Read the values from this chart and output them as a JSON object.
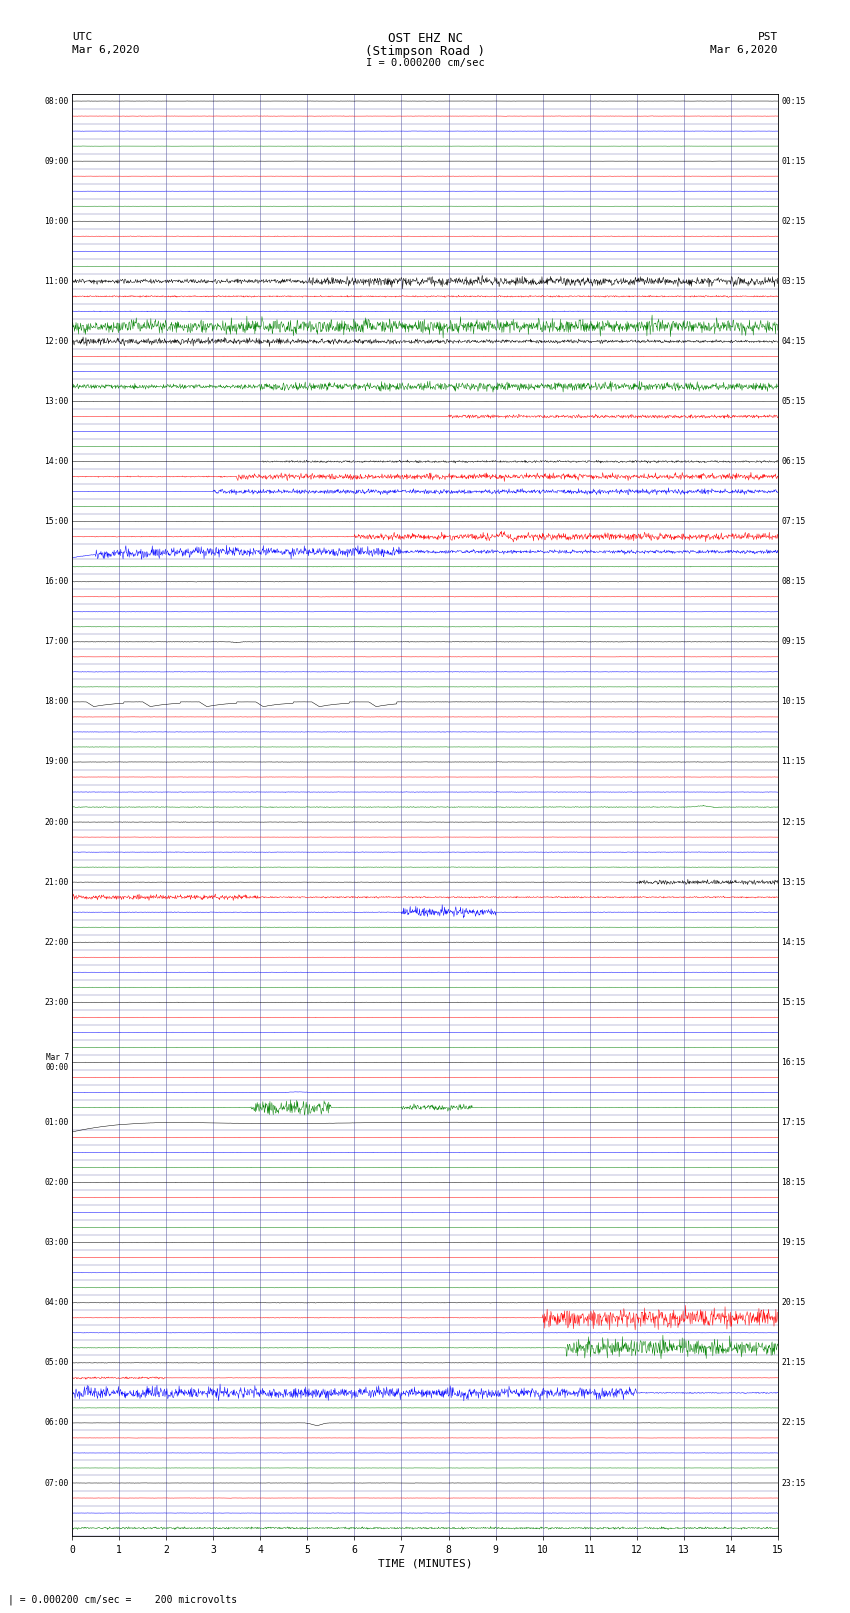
{
  "title_line1": "OST EHZ NC",
  "title_line2": "(Stimpson Road )",
  "title_line3": "I = 0.000200 cm/sec",
  "label_utc": "UTC",
  "label_date_left": "Mar 6,2020",
  "label_pst": "PST",
  "label_date_right": "Mar 6,2020",
  "xlabel": "TIME (MINUTES)",
  "scale_label": "| = 0.000200 cm/sec =    200 microvolts",
  "x_min": 0,
  "x_max": 15,
  "x_ticks": [
    0,
    1,
    2,
    3,
    4,
    5,
    6,
    7,
    8,
    9,
    10,
    11,
    12,
    13,
    14,
    15
  ],
  "background_color": "#ffffff",
  "grid_color": "#6666aa",
  "fig_width": 8.5,
  "fig_height": 16.13,
  "dpi": 100,
  "row_colors": [
    "black",
    "red",
    "blue",
    "green"
  ],
  "n_traces": 32,
  "left_labels": [
    "08:00",
    "",
    "",
    "",
    "09:00",
    "",
    "",
    "",
    "10:00",
    "",
    "",
    "",
    "11:00",
    "",
    "",
    "",
    "12:00",
    "",
    "",
    "",
    "13:00",
    "",
    "",
    "",
    "14:00",
    "",
    "",
    "",
    "15:00",
    "",
    "",
    "",
    "16:00",
    "",
    "",
    "",
    "17:00",
    "",
    "",
    "",
    "18:00",
    "",
    "",
    "",
    "19:00",
    "",
    "",
    "",
    "20:00",
    "",
    "",
    "",
    "21:00",
    "",
    "",
    "",
    "22:00",
    "",
    "",
    "",
    "23:00",
    "",
    "",
    "",
    "Mar 7\n00:00",
    "",
    "",
    "",
    "01:00",
    "",
    "",
    "",
    "02:00",
    "",
    "",
    "",
    "03:00",
    "",
    "",
    "",
    "04:00",
    "",
    "",
    "",
    "05:00",
    "",
    "",
    "",
    "06:00",
    "",
    "",
    "",
    "07:00",
    "",
    "",
    ""
  ],
  "right_labels": [
    "00:15",
    "",
    "",
    "",
    "01:15",
    "",
    "",
    "",
    "02:15",
    "",
    "",
    "",
    "03:15",
    "",
    "",
    "",
    "04:15",
    "",
    "",
    "",
    "05:15",
    "",
    "",
    "",
    "06:15",
    "",
    "",
    "",
    "07:15",
    "",
    "",
    "",
    "08:15",
    "",
    "",
    "",
    "09:15",
    "",
    "",
    "",
    "10:15",
    "",
    "",
    "",
    "11:15",
    "",
    "",
    "",
    "12:15",
    "",
    "",
    "",
    "13:15",
    "",
    "",
    "",
    "14:15",
    "",
    "",
    "",
    "15:15",
    "",
    "",
    "",
    "16:15",
    "",
    "",
    "",
    "17:15",
    "",
    "",
    "",
    "18:15",
    "",
    "",
    "",
    "19:15",
    "",
    "",
    "",
    "20:15",
    "",
    "",
    "",
    "21:15",
    "",
    "",
    "",
    "22:15",
    "",
    "",
    "",
    "23:15",
    "",
    "",
    ""
  ]
}
